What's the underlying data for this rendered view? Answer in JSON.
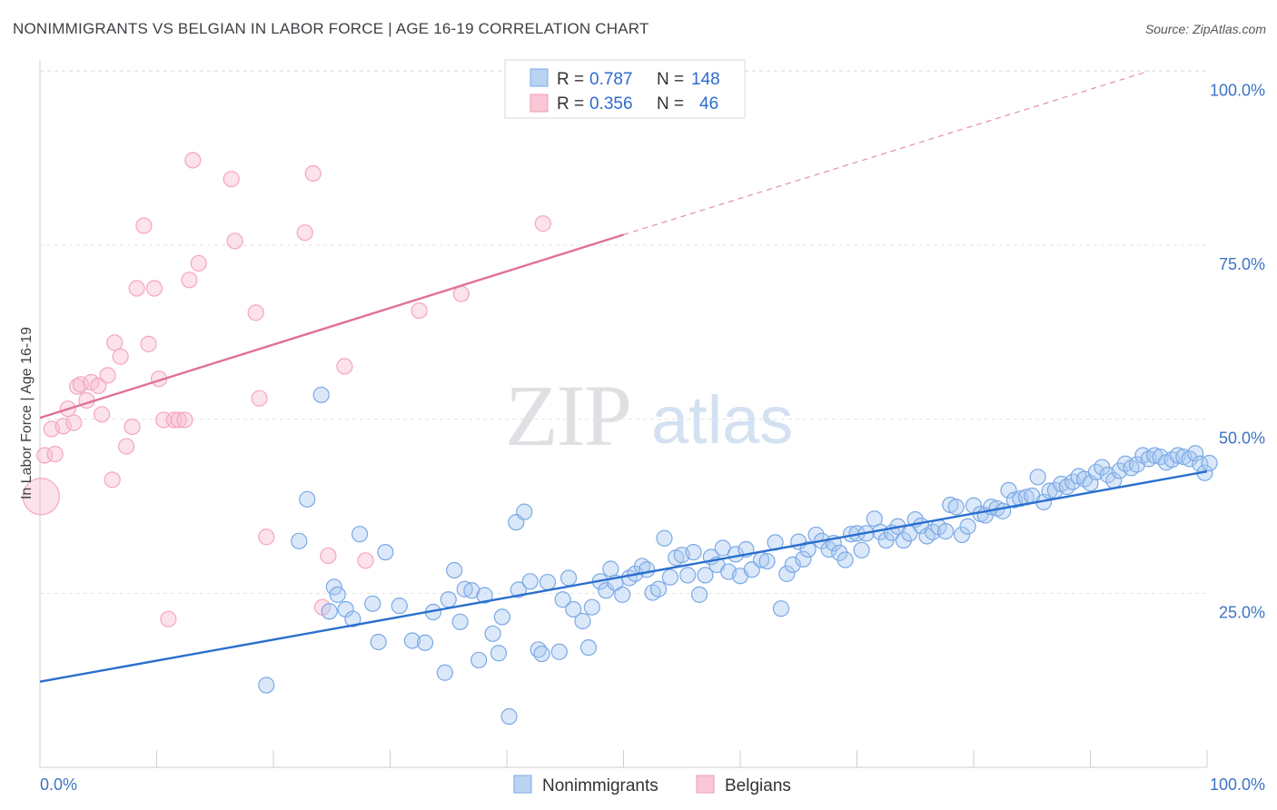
{
  "title": "NONIMMIGRANTS VS BELGIAN IN LABOR FORCE | AGE 16-19 CORRELATION CHART",
  "source": "Source: ZipAtlas.com",
  "watermark": {
    "zip": "ZIP",
    "atlas": "atlas"
  },
  "colors": {
    "blue": "#7aa9e6",
    "blue_line": "#2a6fce",
    "pink": "#f4a6bd",
    "pink_line": "#e07098",
    "tick_text": "#3d74c4",
    "grid": "#e3e3e3"
  },
  "legend": {
    "rows": [
      {
        "r_label": "R = ",
        "r_value": "0.787",
        "n_label": "N = ",
        "n_value": "148"
      },
      {
        "r_label": "R = ",
        "r_value": "0.356",
        "n_label": "N = ",
        "n_value": "46"
      }
    ]
  },
  "bottom_legend": [
    "Nonimmigrants",
    "Belgians"
  ],
  "chart_data": {
    "type": "scatter",
    "title": "NONIMMIGRANTS VS BELGIAN IN LABOR FORCE | AGE 16-19 CORRELATION CHART",
    "xlabel": "",
    "ylabel": "In Labor Force | Age 16-19",
    "xlim": [
      0,
      100
    ],
    "ylim": [
      0,
      102
    ],
    "x_tick_labels": [
      "0.0%",
      "100.0%"
    ],
    "y_ticks": [
      25,
      50,
      75,
      100
    ],
    "y_tick_labels": [
      "25.0%",
      "50.0%",
      "75.0%",
      "100.0%"
    ],
    "grid": true,
    "legend_position": "top-center",
    "series": [
      {
        "name": "Nonimmigrants",
        "r": 0.787,
        "n": 148,
        "trend": {
          "x": [
            0,
            100
          ],
          "y": [
            12.3,
            42.5
          ],
          "dashed_extension": false
        },
        "points": [
          [
            19.4,
            11.8
          ],
          [
            22.2,
            32.5
          ],
          [
            22.9,
            38.5
          ],
          [
            24.1,
            53.5
          ],
          [
            24.8,
            22.4
          ],
          [
            25.2,
            25.9
          ],
          [
            25.5,
            24.8
          ],
          [
            26.2,
            22.7
          ],
          [
            26.8,
            21.3
          ],
          [
            27.4,
            33.5
          ],
          [
            28.5,
            23.5
          ],
          [
            29.0,
            18.0
          ],
          [
            29.6,
            30.9
          ],
          [
            30.8,
            23.2
          ],
          [
            31.9,
            18.2
          ],
          [
            33.0,
            17.9
          ],
          [
            33.7,
            22.3
          ],
          [
            34.7,
            13.6
          ],
          [
            35.0,
            24.1
          ],
          [
            35.5,
            28.3
          ],
          [
            36.0,
            20.9
          ],
          [
            36.4,
            25.6
          ],
          [
            37.0,
            25.4
          ],
          [
            37.6,
            15.4
          ],
          [
            38.1,
            24.7
          ],
          [
            38.8,
            19.2
          ],
          [
            39.3,
            16.4
          ],
          [
            39.6,
            21.6
          ],
          [
            40.2,
            7.3
          ],
          [
            40.8,
            35.2
          ],
          [
            41.0,
            25.5
          ],
          [
            41.5,
            36.7
          ],
          [
            42.0,
            26.7
          ],
          [
            42.7,
            16.9
          ],
          [
            43.0,
            16.3
          ],
          [
            43.5,
            26.6
          ],
          [
            44.5,
            16.6
          ],
          [
            44.8,
            24.1
          ],
          [
            45.3,
            27.2
          ],
          [
            45.7,
            22.7
          ],
          [
            46.5,
            21.0
          ],
          [
            47.0,
            17.2
          ],
          [
            47.3,
            23.0
          ],
          [
            48.0,
            26.7
          ],
          [
            48.5,
            25.4
          ],
          [
            48.9,
            28.5
          ],
          [
            49.3,
            26.5
          ],
          [
            49.9,
            24.8
          ],
          [
            50.5,
            27.2
          ],
          [
            51.0,
            27.8
          ],
          [
            51.6,
            28.9
          ],
          [
            52.0,
            28.4
          ],
          [
            52.5,
            25.1
          ],
          [
            53.0,
            25.6
          ],
          [
            53.5,
            32.9
          ],
          [
            54.0,
            27.3
          ],
          [
            54.5,
            30.1
          ],
          [
            55.0,
            30.5
          ],
          [
            55.5,
            27.6
          ],
          [
            56.0,
            30.9
          ],
          [
            56.5,
            24.8
          ],
          [
            57.0,
            27.6
          ],
          [
            57.5,
            30.2
          ],
          [
            58.0,
            29.1
          ],
          [
            58.5,
            31.5
          ],
          [
            59.0,
            28.1
          ],
          [
            59.6,
            30.6
          ],
          [
            60.0,
            27.5
          ],
          [
            60.5,
            31.3
          ],
          [
            61.0,
            28.4
          ],
          [
            61.8,
            29.8
          ],
          [
            62.3,
            29.6
          ],
          [
            63.0,
            32.3
          ],
          [
            63.5,
            22.8
          ],
          [
            64.0,
            27.8
          ],
          [
            64.5,
            29.1
          ],
          [
            65.0,
            32.4
          ],
          [
            65.4,
            29.9
          ],
          [
            65.8,
            31.3
          ],
          [
            66.5,
            33.4
          ],
          [
            67.0,
            32.5
          ],
          [
            67.6,
            31.3
          ],
          [
            68.0,
            32.2
          ],
          [
            68.5,
            30.8
          ],
          [
            69.0,
            29.8
          ],
          [
            69.5,
            33.5
          ],
          [
            70.0,
            33.6
          ],
          [
            70.4,
            31.2
          ],
          [
            70.8,
            33.6
          ],
          [
            71.5,
            35.7
          ],
          [
            72.0,
            33.8
          ],
          [
            72.5,
            32.6
          ],
          [
            73.0,
            33.7
          ],
          [
            73.5,
            34.6
          ],
          [
            74.0,
            32.6
          ],
          [
            74.5,
            33.6
          ],
          [
            75.0,
            35.6
          ],
          [
            75.5,
            34.7
          ],
          [
            76.0,
            33.2
          ],
          [
            76.5,
            33.8
          ],
          [
            77.0,
            34.5
          ],
          [
            77.6,
            33.9
          ],
          [
            78.0,
            37.7
          ],
          [
            78.5,
            37.4
          ],
          [
            79.0,
            33.4
          ],
          [
            79.5,
            34.6
          ],
          [
            80.0,
            37.6
          ],
          [
            80.6,
            36.4
          ],
          [
            81.0,
            36.2
          ],
          [
            81.5,
            37.4
          ],
          [
            82.0,
            37.2
          ],
          [
            82.5,
            36.8
          ],
          [
            83.0,
            39.8
          ],
          [
            83.5,
            38.4
          ],
          [
            84.0,
            38.6
          ],
          [
            84.5,
            38.8
          ],
          [
            85.0,
            39.0
          ],
          [
            85.5,
            41.7
          ],
          [
            86.0,
            38.1
          ],
          [
            86.5,
            39.7
          ],
          [
            87.0,
            39.8
          ],
          [
            87.5,
            40.7
          ],
          [
            88.0,
            40.3
          ],
          [
            88.5,
            41.0
          ],
          [
            89.0,
            41.8
          ],
          [
            89.5,
            41.4
          ],
          [
            90.0,
            40.8
          ],
          [
            90.5,
            42.4
          ],
          [
            91.0,
            43.1
          ],
          [
            91.5,
            42.0
          ],
          [
            92.0,
            41.2
          ],
          [
            92.5,
            42.6
          ],
          [
            93.0,
            43.6
          ],
          [
            93.5,
            43.0
          ],
          [
            94.0,
            43.5
          ],
          [
            94.5,
            44.8
          ],
          [
            95.0,
            44.3
          ],
          [
            95.5,
            44.8
          ],
          [
            96.0,
            44.6
          ],
          [
            96.5,
            43.8
          ],
          [
            97.0,
            44.2
          ],
          [
            97.5,
            44.8
          ],
          [
            98.0,
            44.6
          ],
          [
            98.5,
            44.3
          ],
          [
            99.0,
            45.1
          ],
          [
            99.4,
            43.6
          ],
          [
            99.8,
            42.3
          ],
          [
            100.2,
            43.7
          ]
        ]
      },
      {
        "name": "Belgians",
        "r": 0.356,
        "n": 46,
        "trend": {
          "x": [
            0,
            50
          ],
          "y": [
            50.2,
            76.5
          ],
          "dashed_extension_to": [
            95,
            100
          ]
        },
        "points": [
          [
            0.1,
            38.9
          ],
          [
            0.4,
            44.8
          ],
          [
            1.0,
            48.6
          ],
          [
            1.3,
            45.0
          ],
          [
            2.0,
            49.0
          ],
          [
            2.4,
            51.5
          ],
          [
            2.9,
            49.5
          ],
          [
            3.2,
            54.7
          ],
          [
            3.5,
            55.0
          ],
          [
            4.0,
            52.7
          ],
          [
            4.4,
            55.3
          ],
          [
            5.0,
            54.8
          ],
          [
            5.3,
            50.7
          ],
          [
            5.8,
            56.3
          ],
          [
            6.2,
            41.3
          ],
          [
            6.4,
            61.0
          ],
          [
            6.9,
            59.0
          ],
          [
            7.4,
            46.1
          ],
          [
            7.9,
            48.9
          ],
          [
            8.3,
            68.8
          ],
          [
            8.9,
            77.8
          ],
          [
            9.3,
            60.8
          ],
          [
            9.8,
            68.8
          ],
          [
            10.2,
            55.8
          ],
          [
            10.6,
            49.9
          ],
          [
            11.0,
            21.3
          ],
          [
            11.5,
            49.9
          ],
          [
            11.9,
            49.9
          ],
          [
            12.4,
            49.9
          ],
          [
            12.8,
            70.0
          ],
          [
            13.1,
            87.2
          ],
          [
            13.6,
            72.4
          ],
          [
            16.4,
            84.5
          ],
          [
            16.7,
            75.6
          ],
          [
            18.5,
            65.3
          ],
          [
            18.8,
            53.0
          ],
          [
            19.4,
            33.1
          ],
          [
            22.7,
            76.8
          ],
          [
            23.4,
            85.3
          ],
          [
            24.2,
            23.0
          ],
          [
            24.7,
            30.4
          ],
          [
            26.1,
            57.6
          ],
          [
            27.9,
            29.7
          ],
          [
            32.5,
            65.6
          ],
          [
            36.1,
            68.0
          ],
          [
            43.1,
            78.1
          ]
        ]
      }
    ]
  }
}
